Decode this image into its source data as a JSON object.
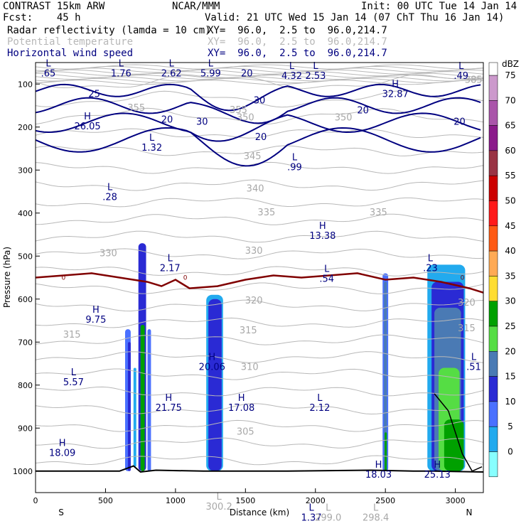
{
  "header": {
    "model": "CONTRAST 15km ARW",
    "forecast": "Fcst:    45 h",
    "center": "NCAR/MMM",
    "init": "Init: 00 UTC Tue 14 Jan 14",
    "valid": "Valid: 21 UTC Wed 15 Jan 14 (07 ChT Thu 16 Jan 14)"
  },
  "fields": [
    {
      "name": "Radar reflectivity (lamda = 10 cm)",
      "xy": "XY=  96.0,  2.5 to  96.0,214.7",
      "color": "#000000"
    },
    {
      "name": "Potential temperature",
      "xy": "XY=  96.0,  2.5 to  96.0,214.7",
      "color": "#b8b8b8"
    },
    {
      "name": "Horizontal wind speed",
      "xy": "XY=  96.0,  2.5 to  96.0,214.7",
      "color": "#000080"
    }
  ],
  "chart_data": {
    "type": "cross-section",
    "xlabel": "Distance (km)",
    "ylabel": "Pressure (hPa)",
    "xlim": [
      0,
      3200
    ],
    "ylim": [
      1050,
      50
    ],
    "x_ticks": [
      0,
      500,
      1000,
      1500,
      2000,
      2500,
      3000
    ],
    "y_ticks": [
      100,
      200,
      300,
      400,
      500,
      600,
      700,
      800,
      900,
      1000
    ],
    "x_end_labels": {
      "left": "S",
      "right": "N"
    },
    "colorbar": {
      "unit": "dBZ",
      "levels": [
        {
          "value": "75",
          "color": "#cc99cc"
        },
        {
          "value": "70",
          "color": "#aa55aa"
        },
        {
          "value": "65",
          "color": "#8b1a8b"
        },
        {
          "value": "60",
          "color": "#993344"
        },
        {
          "value": "55",
          "color": "#cc0000"
        },
        {
          "value": "50",
          "color": "#ff1a1a"
        },
        {
          "value": "45",
          "color": "#ff5a14"
        },
        {
          "value": "40",
          "color": "#ffaa55"
        },
        {
          "value": "35",
          "color": "#ffdd33"
        },
        {
          "value": "30",
          "color": "#00a000"
        },
        {
          "value": "25",
          "color": "#55dd44"
        },
        {
          "value": "20",
          "color": "#4a7ab4"
        },
        {
          "value": "15",
          "color": "#2a2ad4"
        },
        {
          "value": "10",
          "color": "#4a70ff"
        },
        {
          "value": "5",
          "color": "#22aaee"
        },
        {
          "value": "0",
          "color": "#88ffff"
        }
      ]
    },
    "theta_labels": [
      {
        "text": "385",
        "x": 3130,
        "p": 97
      },
      {
        "text": "355",
        "x": 720,
        "p": 162
      },
      {
        "text": "355",
        "x": 1450,
        "p": 167
      },
      {
        "text": "350",
        "x": 1500,
        "p": 185
      },
      {
        "text": "350",
        "x": 2200,
        "p": 185
      },
      {
        "text": "345",
        "x": 1550,
        "p": 275
      },
      {
        "text": "340",
        "x": 1570,
        "p": 350
      },
      {
        "text": "335",
        "x": 1650,
        "p": 405
      },
      {
        "text": "335",
        "x": 2450,
        "p": 405
      },
      {
        "text": "330",
        "x": 520,
        "p": 500
      },
      {
        "text": "330",
        "x": 1560,
        "p": 495
      },
      {
        "text": "320",
        "x": 1560,
        "p": 610
      },
      {
        "text": "315",
        "x": 260,
        "p": 690
      },
      {
        "text": "315",
        "x": 1520,
        "p": 680
      },
      {
        "text": "310",
        "x": 1530,
        "p": 765
      },
      {
        "text": "305",
        "x": 1500,
        "p": 915
      },
      {
        "text": "320",
        "x": 3080,
        "p": 615
      },
      {
        "text": "315",
        "x": 3080,
        "p": 675
      }
    ],
    "wind_labels": [
      {
        "text": "25",
        "x": 420,
        "p": 130
      },
      {
        "text": "20",
        "x": 940,
        "p": 190
      },
      {
        "text": "30",
        "x": 1190,
        "p": 195
      },
      {
        "text": "30",
        "x": 1600,
        "p": 145
      },
      {
        "text": "20",
        "x": 1610,
        "p": 230
      },
      {
        "text": "20",
        "x": 1510,
        "p": 82
      },
      {
        "text": "20",
        "x": 2340,
        "p": 168
      },
      {
        "text": "20",
        "x": 3030,
        "p": 195
      }
    ],
    "extrema": [
      {
        "type": "L",
        "value": ".65",
        "x": 20,
        "p": 82
      },
      {
        "type": "L",
        "value": "1.76",
        "x": 540,
        "p": 82
      },
      {
        "type": "L",
        "value": "2.62",
        "x": 900,
        "p": 82
      },
      {
        "type": "L",
        "value": "5.99",
        "x": 1180,
        "p": 82
      },
      {
        "type": "L",
        "value": "4.32",
        "x": 1760,
        "p": 88
      },
      {
        "type": "L",
        "value": "2.53",
        "x": 1930,
        "p": 88
      },
      {
        "type": "L",
        "value": ".49",
        "x": 2970,
        "p": 88
      },
      {
        "type": "H",
        "value": "32.87",
        "x": 2500,
        "p": 130
      },
      {
        "type": "H",
        "value": "26.05",
        "x": 300,
        "p": 205
      },
      {
        "type": "L",
        "value": "1.32",
        "x": 760,
        "p": 255
      },
      {
        "type": "L",
        "value": ".99",
        "x": 1780,
        "p": 300
      },
      {
        "type": "L",
        "value": ".28",
        "x": 460,
        "p": 370
      },
      {
        "type": "H",
        "value": "13.38",
        "x": 1980,
        "p": 460
      },
      {
        "type": "L",
        "value": "2.17",
        "x": 890,
        "p": 535
      },
      {
        "type": "L",
        "value": ".23",
        "x": 2750,
        "p": 535
      },
      {
        "type": "L",
        "value": ".54",
        "x": 2010,
        "p": 560
      },
      {
        "type": "H",
        "value": "9.75",
        "x": 360,
        "p": 655
      },
      {
        "type": "H",
        "value": "20.06",
        "x": 1190,
        "p": 765
      },
      {
        "type": "L",
        "value": "5.57",
        "x": 200,
        "p": 800
      },
      {
        "type": "L",
        "value": ".51",
        "x": 3060,
        "p": 765
      },
      {
        "type": "H",
        "value": "21.75",
        "x": 880,
        "p": 860
      },
      {
        "type": "H",
        "value": "17.08",
        "x": 1400,
        "p": 860
      },
      {
        "type": "L",
        "value": "2.12",
        "x": 1960,
        "p": 860
      },
      {
        "type": "H",
        "value": "18.09",
        "x": 120,
        "p": 965
      },
      {
        "type": "H",
        "value": "18.03",
        "x": 2380,
        "p": 1015
      },
      {
        "type": "H",
        "value": "25.13",
        "x": 2800,
        "p": 1015
      },
      {
        "type": "L",
        "value": "300.2",
        "x": 1240,
        "p": 1090
      },
      {
        "type": "L",
        "value": "1.37",
        "x": 1900,
        "p": 1115
      },
      {
        "type": "L",
        "value": "299.0",
        "x": 2020,
        "p": 1115
      },
      {
        "type": "L",
        "value": "298.4",
        "x": 2360,
        "p": 1115
      }
    ],
    "zero_isotherm_label": "0",
    "reflectivity_cells": [
      {
        "x0": 640,
        "x1": 680,
        "ptop": 670,
        "pbot": 1000,
        "dbz": 10
      },
      {
        "x0": 660,
        "x1": 680,
        "ptop": 700,
        "pbot": 1000,
        "dbz": 15
      },
      {
        "x0": 700,
        "x1": 720,
        "ptop": 760,
        "pbot": 990,
        "dbz": 5
      },
      {
        "x0": 735,
        "x1": 790,
        "ptop": 470,
        "pbot": 1000,
        "dbz": 15
      },
      {
        "x0": 750,
        "x1": 780,
        "ptop": 660,
        "pbot": 1000,
        "dbz": 30
      },
      {
        "x0": 800,
        "x1": 825,
        "ptop": 670,
        "pbot": 1000,
        "dbz": 10
      },
      {
        "x0": 1220,
        "x1": 1340,
        "ptop": 590,
        "pbot": 1000,
        "dbz": 5
      },
      {
        "x0": 1235,
        "x1": 1330,
        "ptop": 600,
        "pbot": 1000,
        "dbz": 15
      },
      {
        "x0": 2480,
        "x1": 2520,
        "ptop": 540,
        "pbot": 1000,
        "dbz": 10
      },
      {
        "x0": 2490,
        "x1": 2510,
        "ptop": 560,
        "pbot": 1000,
        "dbz": 20
      },
      {
        "x0": 2495,
        "x1": 2510,
        "ptop": 910,
        "pbot": 1000,
        "dbz": 30
      },
      {
        "x0": 2800,
        "x1": 3070,
        "ptop": 520,
        "pbot": 1000,
        "dbz": 5
      },
      {
        "x0": 2830,
        "x1": 3060,
        "ptop": 560,
        "pbot": 1000,
        "dbz": 15
      },
      {
        "x0": 2850,
        "x1": 3040,
        "ptop": 620,
        "pbot": 1000,
        "dbz": 20
      },
      {
        "x0": 2880,
        "x1": 3030,
        "ptop": 760,
        "pbot": 1000,
        "dbz": 25
      },
      {
        "x0": 2920,
        "x1": 3060,
        "ptop": 880,
        "pbot": 1000,
        "dbz": 30
      }
    ],
    "zero_isotherm": [
      [
        0,
        550
      ],
      [
        200,
        545
      ],
      [
        400,
        540
      ],
      [
        600,
        550
      ],
      [
        800,
        560
      ],
      [
        900,
        570
      ],
      [
        1000,
        555
      ],
      [
        1100,
        575
      ],
      [
        1300,
        570
      ],
      [
        1500,
        555
      ],
      [
        1700,
        545
      ],
      [
        1900,
        550
      ],
      [
        2100,
        545
      ],
      [
        2300,
        540
      ],
      [
        2500,
        555
      ],
      [
        2700,
        550
      ],
      [
        2900,
        560
      ],
      [
        3100,
        575
      ],
      [
        3200,
        585
      ]
    ],
    "surface": [
      [
        0,
        1000
      ],
      [
        300,
        1000
      ],
      [
        600,
        1000
      ],
      [
        700,
        988
      ],
      [
        750,
        1002
      ],
      [
        860,
        998
      ],
      [
        1200,
        1000
      ],
      [
        1800,
        1000
      ],
      [
        2400,
        998
      ],
      [
        2700,
        1000
      ],
      [
        2850,
        1000
      ],
      [
        3200,
        1002
      ]
    ]
  }
}
